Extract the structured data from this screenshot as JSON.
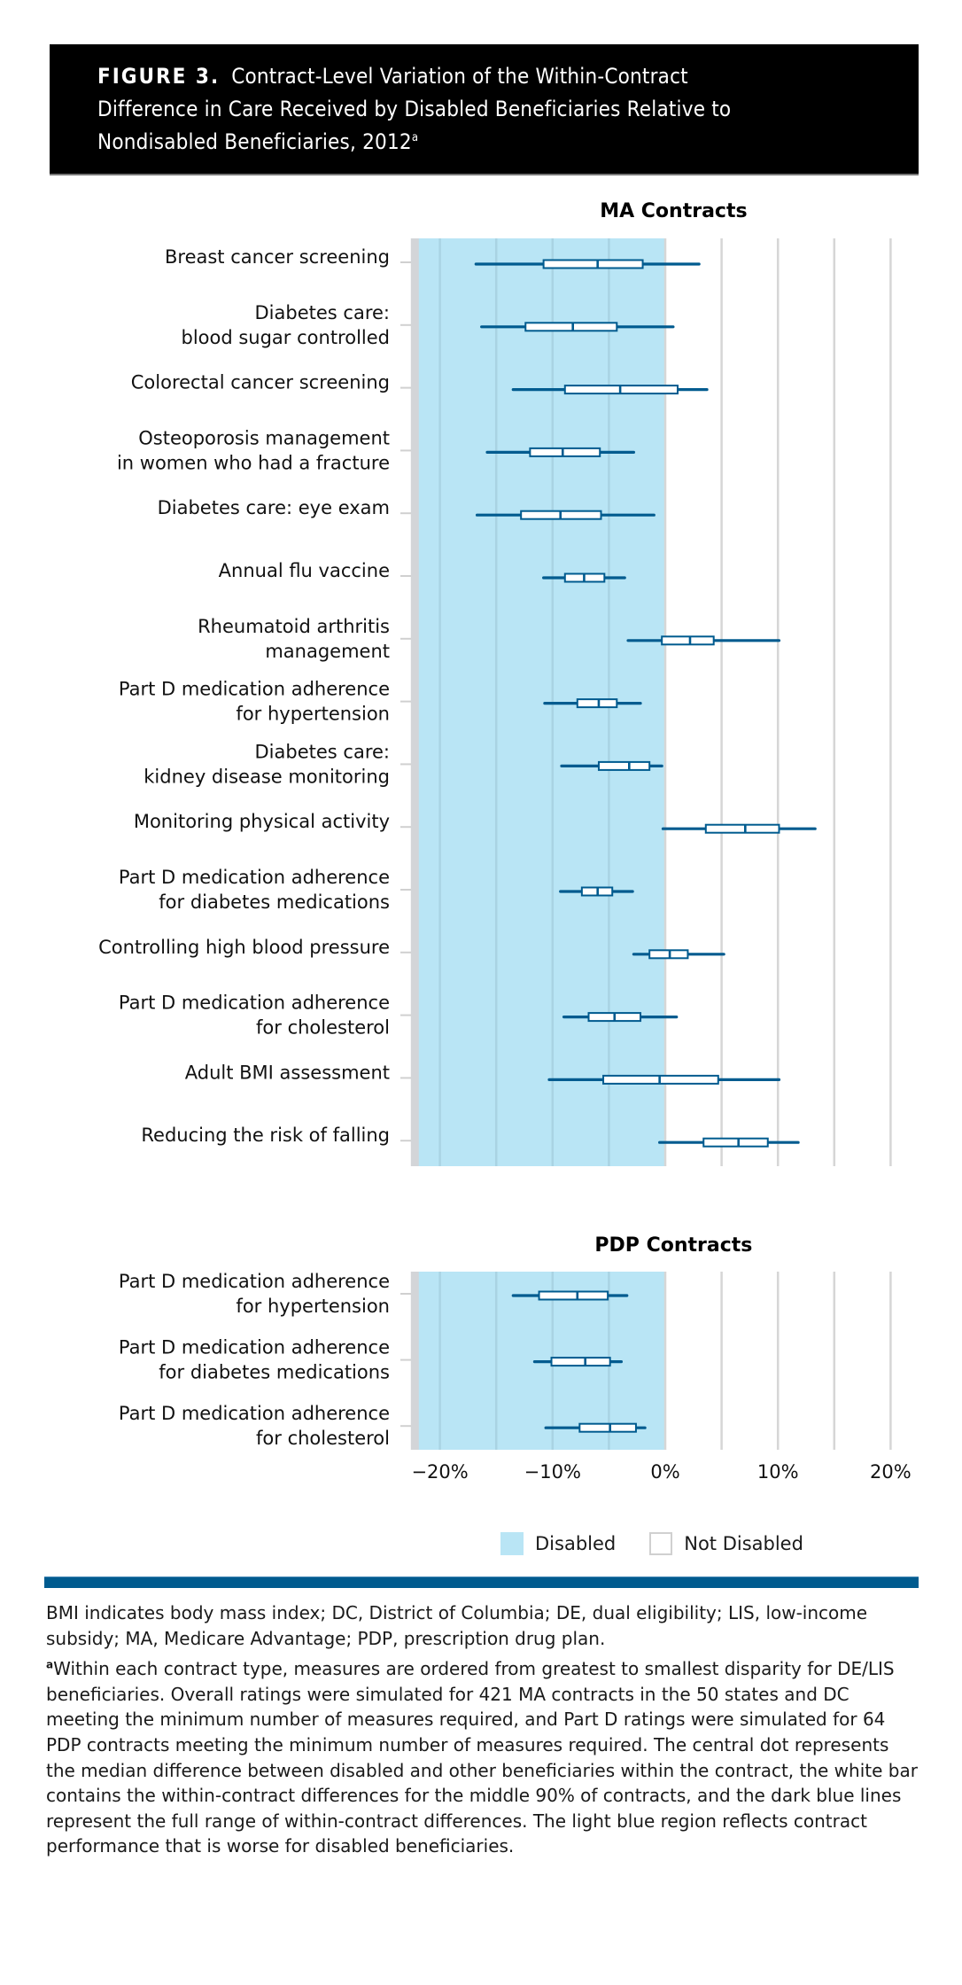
{
  "header": {
    "figure_label": "FIGURE 3.",
    "title_lines": [
      "Contract-Level Variation of the Within-Contract",
      "Difference in Care Received by Disabled Beneficiaries Relative to",
      "Nondisabled Beneficiaries, 2012"
    ],
    "title_superscript": "a"
  },
  "legend": {
    "items": [
      {
        "label": "Disabled",
        "color": "#b9e5f5"
      },
      {
        "label": "Not Disabled",
        "color": "#ffffff"
      }
    ]
  },
  "colors": {
    "disabled_region": "#b9e5f5",
    "box_stroke": "#005b8f",
    "grid": "#d6d6d6",
    "rule": "#005b8f"
  },
  "notes": {
    "abbreviations": "BMI indicates body mass index; DC, District of Columbia; DE, dual eligibility; LIS, low-income subsidy; MA, Medicare Advantage; PDP, prescription drug plan.",
    "footnote_marker": "a",
    "footnote": "Within each contract type, measures are ordered from greatest to smallest disparity for DE/LIS beneficiaries. Overall ratings were simulated for 421 MA contracts in the 50 states and DC meeting the minimum number of measures required, and Part D ratings were simulated for 64 PDP contracts meeting the minimum number of measures required. The central dot represents the median difference between disabled and other beneficiaries within the contract, the white bar contains the within-contract differences for the middle 90% of contracts, and the dark blue lines represent the full range of within-contract differences. The light blue region reflects contract performance that is worse for disabled beneficiaries."
  },
  "chart_data": [
    {
      "type": "boxplot",
      "title": "MA Contracts",
      "xlabel": "",
      "ylabel": "",
      "xlim": [
        -22.5,
        20
      ],
      "xticks": [
        -20,
        -10,
        0,
        10,
        20
      ],
      "xtick_labels": [
        "−20%",
        "−10%",
        "0%",
        "10%",
        "20%"
      ],
      "grid_step": 5,
      "shaded_region": {
        "from": -22.5,
        "to": 0,
        "meaning": "Disabled"
      },
      "fields": [
        "min",
        "p5",
        "median",
        "p95",
        "max"
      ],
      "rows": [
        {
          "label": [
            "Breast cancer screening"
          ],
          "values": [
            -16.8,
            -10.8,
            -6.0,
            -2.0,
            3.0
          ]
        },
        {
          "label": [
            "Diabetes care:",
            "blood sugar controlled"
          ],
          "values": [
            -16.3,
            -12.4,
            -8.2,
            -4.3,
            0.7
          ]
        },
        {
          "label": [
            "Colorectal cancer screening"
          ],
          "values": [
            -13.5,
            -8.9,
            -4.0,
            1.1,
            3.7
          ]
        },
        {
          "label": [
            "Osteoporosis management",
            "in women who had a fracture"
          ],
          "values": [
            -15.8,
            -12.0,
            -9.1,
            -5.8,
            -2.8
          ]
        },
        {
          "label": [
            "Diabetes care: eye exam"
          ],
          "values": [
            -16.7,
            -12.8,
            -9.3,
            -5.7,
            -1.0
          ]
        },
        {
          "label": [
            "Annual flu vaccine"
          ],
          "values": [
            -10.8,
            -8.9,
            -7.2,
            -5.4,
            -3.6
          ]
        },
        {
          "label": [
            "Rheumatoid arthritis",
            "management"
          ],
          "values": [
            -3.3,
            -0.3,
            2.2,
            4.3,
            10.1
          ]
        },
        {
          "label": [
            "Part D medication adherence",
            "for hypertension"
          ],
          "values": [
            -10.7,
            -7.8,
            -5.9,
            -4.3,
            -2.2
          ]
        },
        {
          "label": [
            "Diabetes care:",
            "kidney disease monitoring"
          ],
          "values": [
            -9.2,
            -5.9,
            -3.2,
            -1.4,
            -0.3
          ]
        },
        {
          "label": [
            "Monitoring physical activity"
          ],
          "values": [
            -0.2,
            3.6,
            7.1,
            10.1,
            13.3
          ]
        },
        {
          "label": [
            "Part D medication adherence",
            "for diabetes medications"
          ],
          "values": [
            -9.3,
            -7.4,
            -6.0,
            -4.7,
            -2.9
          ]
        },
        {
          "label": [
            "Controlling high blood pressure"
          ],
          "values": [
            -2.8,
            -1.4,
            0.4,
            2.0,
            5.2
          ]
        },
        {
          "label": [
            "Part D medication adherence",
            "for cholesterol"
          ],
          "values": [
            -9.0,
            -6.8,
            -4.5,
            -2.2,
            1.0
          ]
        },
        {
          "label": [
            "Adult BMI assessment"
          ],
          "values": [
            -10.3,
            -5.5,
            -0.5,
            4.7,
            10.1
          ]
        },
        {
          "label": [
            "Reducing the risk of falling"
          ],
          "values": [
            -0.5,
            3.4,
            6.5,
            9.1,
            11.8
          ]
        }
      ]
    },
    {
      "type": "boxplot",
      "title": "PDP Contracts",
      "xlabel": "",
      "ylabel": "",
      "xlim": [
        -22.5,
        20
      ],
      "xticks": [
        -20,
        -10,
        0,
        10,
        20
      ],
      "xtick_labels": [
        "−20%",
        "−10%",
        "0%",
        "10%",
        "20%"
      ],
      "grid_step": 5,
      "shaded_region": {
        "from": -22.5,
        "to": 0,
        "meaning": "Disabled"
      },
      "fields": [
        "min",
        "p5",
        "median",
        "p95",
        "max"
      ],
      "rows": [
        {
          "label": [
            "Part D medication adherence",
            "for hypertension"
          ],
          "values": [
            -13.5,
            -11.2,
            -7.8,
            -5.1,
            -3.4
          ]
        },
        {
          "label": [
            "Part D medication adherence",
            "for diabetes medications"
          ],
          "values": [
            -11.6,
            -10.1,
            -7.1,
            -4.9,
            -3.9
          ]
        },
        {
          "label": [
            "Part D medication adherence",
            "for cholesterol"
          ],
          "values": [
            -10.6,
            -7.6,
            -4.9,
            -2.6,
            -1.8
          ]
        }
      ]
    }
  ]
}
